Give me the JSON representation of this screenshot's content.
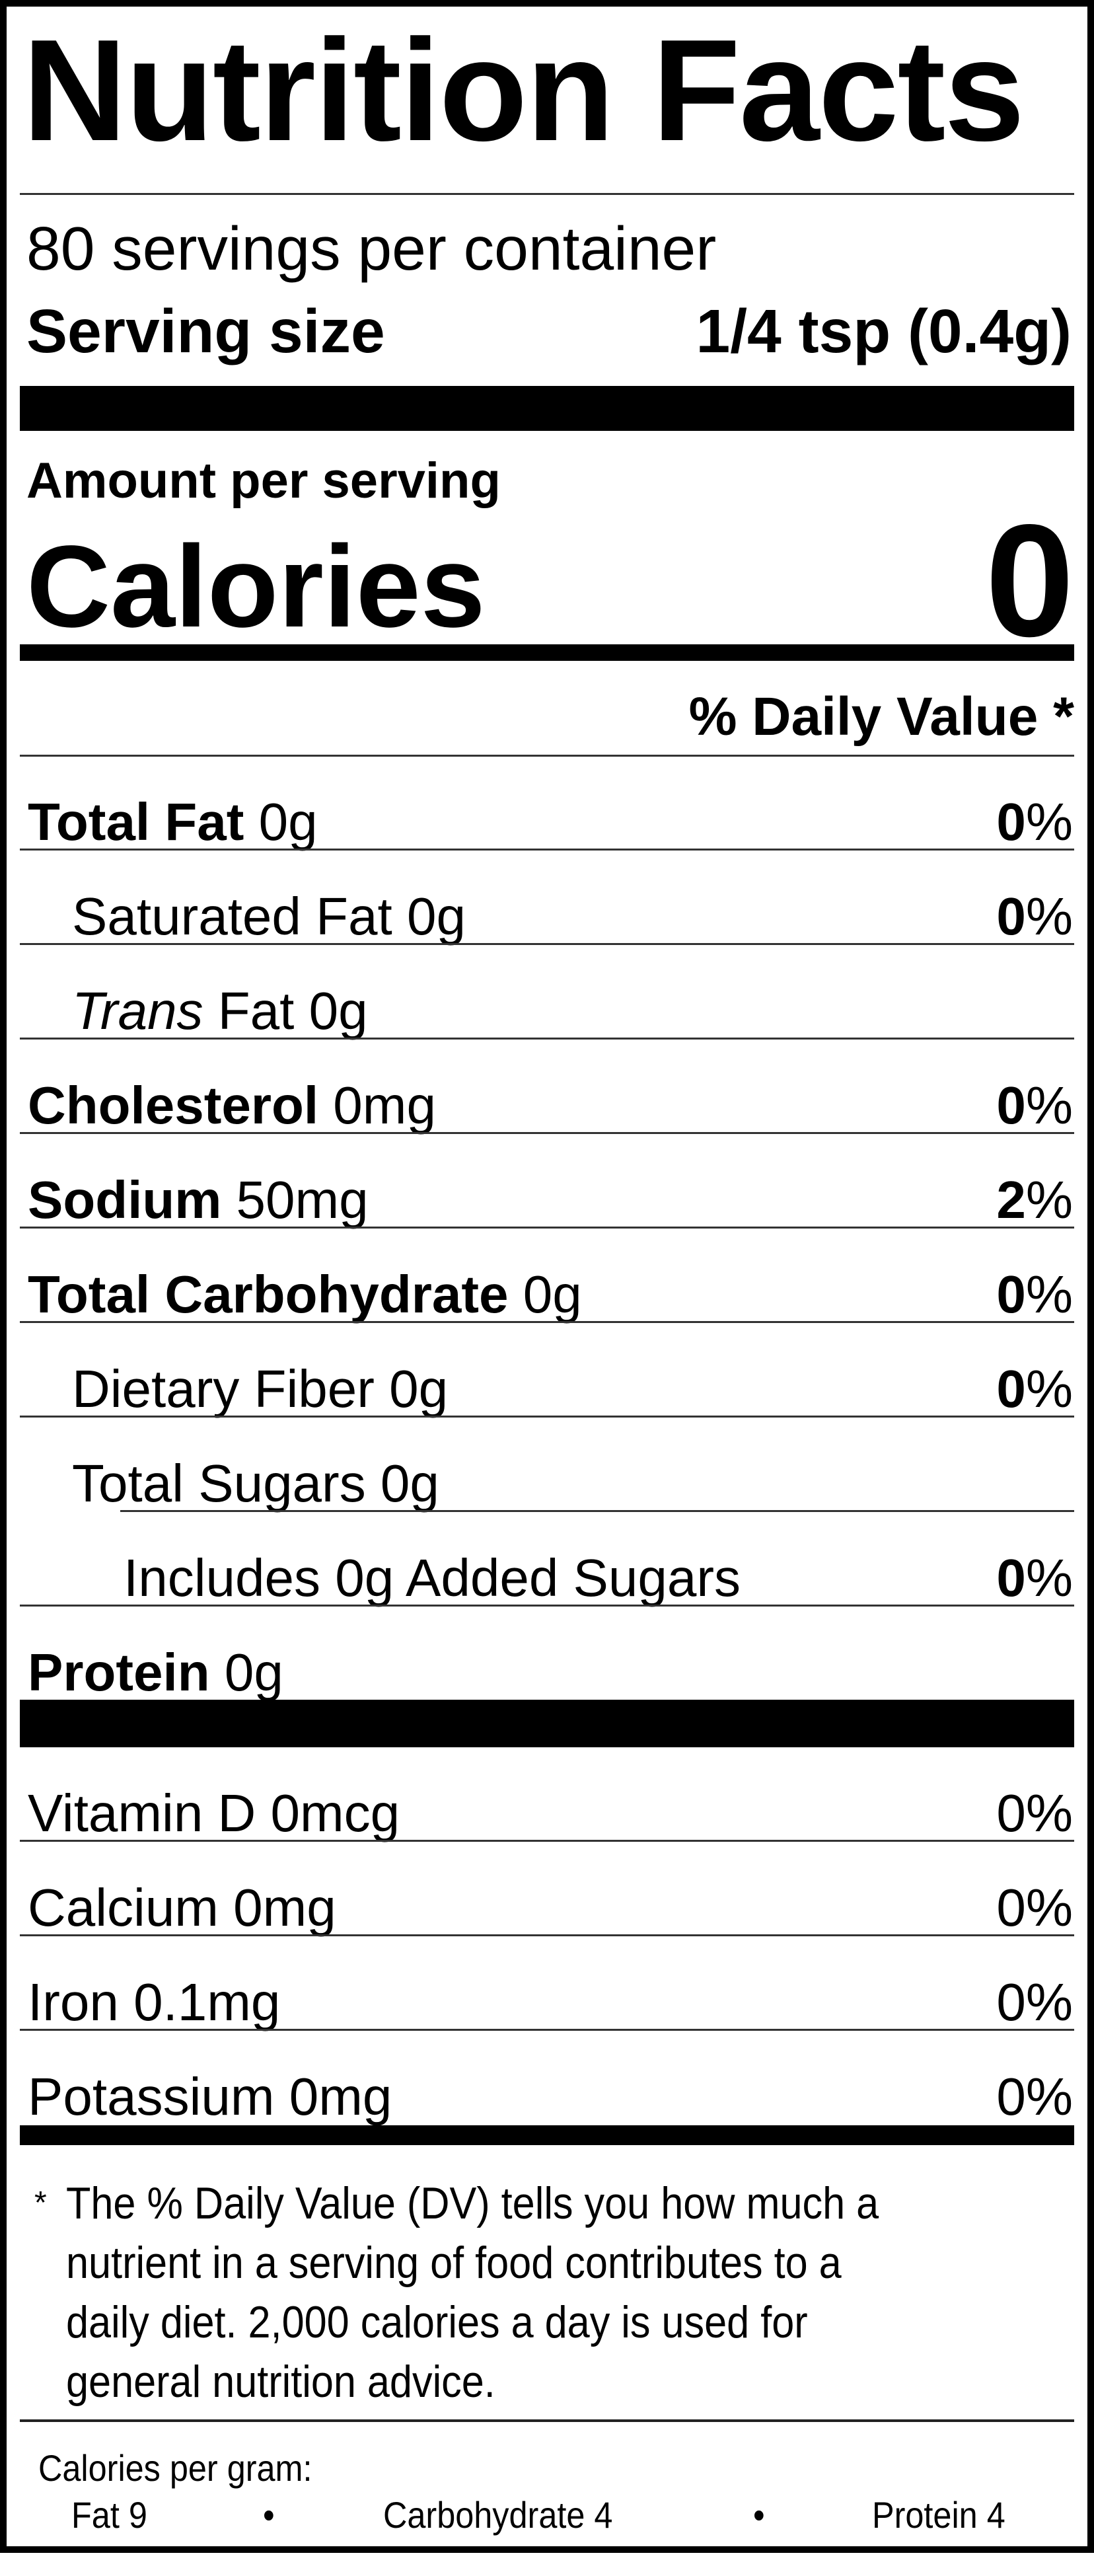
{
  "label": {
    "title": "Nutrition Facts",
    "servings_per_container": "80 servings per container",
    "serving_size_label": "Serving size",
    "serving_size_value": "1/4 tsp (0.4g)",
    "amount_per_serving": "Amount per serving",
    "calories_label": "Calories",
    "calories_value": "0",
    "daily_value_header": "% Daily Value *",
    "nutrients": [
      {
        "name": "Total Fat",
        "amount": " 0g",
        "dv": "0",
        "pct": "%"
      },
      {
        "name": "Saturated Fat 0g",
        "amount": "",
        "dv": "0",
        "pct": "%"
      },
      {
        "name": "Trans",
        "amount": " Fat 0g",
        "dv": "",
        "pct": ""
      },
      {
        "name": "Cholesterol",
        "amount": " 0mg",
        "dv": "0",
        "pct": "%"
      },
      {
        "name": "Sodium",
        "amount": " 50mg",
        "dv": "2",
        "pct": "%"
      },
      {
        "name": "Total Carbohydrate",
        "amount": " 0g",
        "dv": "0",
        "pct": "%"
      },
      {
        "name": "Dietary Fiber 0g",
        "amount": "",
        "dv": "0",
        "pct": "%"
      },
      {
        "name": "Total Sugars 0g",
        "amount": "",
        "dv": "",
        "pct": ""
      },
      {
        "name": "Includes 0g Added Sugars",
        "amount": "",
        "dv": "0",
        "pct": "%"
      },
      {
        "name": "Protein",
        "amount": " 0g",
        "dv": "",
        "pct": ""
      }
    ],
    "vitamins": [
      {
        "name": "Vitamin D 0mcg",
        "dv": "0%"
      },
      {
        "name": "Calcium 0mg",
        "dv": "0%"
      },
      {
        "name": "Iron 0.1mg",
        "dv": "0%"
      },
      {
        "name": "Potassium 0mg",
        "dv": "0%"
      }
    ],
    "footnote_asterisk": "*",
    "footnote_lines": [
      "The % Daily Value (DV) tells you how much a",
      "nutrient in a serving of food contributes to a",
      "daily diet. 2,000 calories a day is used for",
      "general nutrition advice."
    ],
    "calories_per_gram": {
      "heading": "Calories per gram:",
      "fat": "Fat 9",
      "carbohydrate": "Carbohydrate 4",
      "protein": "Protein 4",
      "separator": "•"
    }
  }
}
